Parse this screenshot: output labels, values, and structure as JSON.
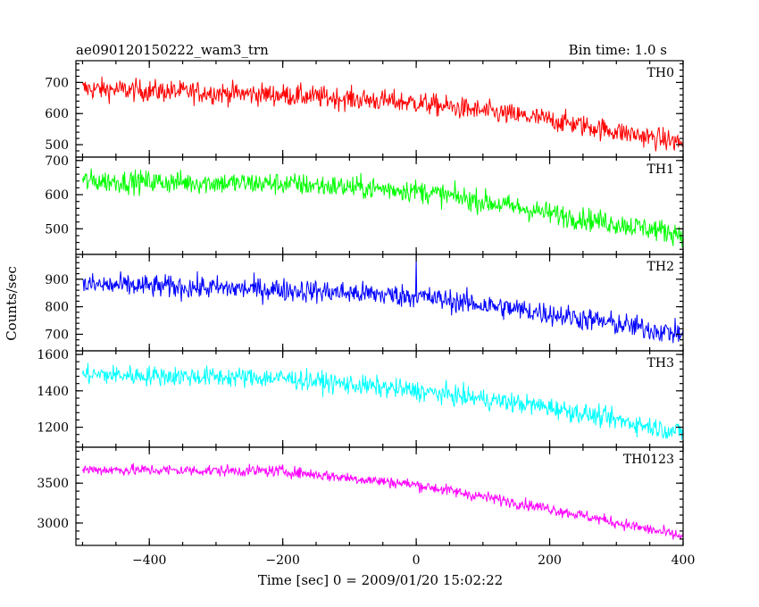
{
  "header": {
    "title": "ae090120150222_wam3_trn",
    "bin_time": "Bin time: 1.0 s"
  },
  "axes": {
    "ylabel": "Counts/sec",
    "xlabel": "Time [sec] 0 = 2009/01/20 15:02:22"
  },
  "chart_data": {
    "type": "line",
    "x_range": [
      -510,
      400
    ],
    "x_ticks": [
      -400,
      -200,
      0,
      200,
      400
    ],
    "x_tick_labels": [
      "−400",
      "−200",
      "0",
      "200",
      "400"
    ],
    "bin_time_s": 1.0,
    "panels": [
      {
        "name": "TH0",
        "color": "#ff0000",
        "ylim": [
          460,
          770
        ],
        "yticks": [
          500,
          600,
          700
        ],
        "trend": [
          [
            -500,
            680
          ],
          [
            -200,
            660
          ],
          [
            0,
            635
          ],
          [
            200,
            580
          ],
          [
            400,
            505
          ]
        ],
        "noise": 32,
        "spikes": []
      },
      {
        "name": "TH1",
        "color": "#00ff00",
        "ylim": [
          425,
          710
        ],
        "yticks": [
          500,
          600,
          700
        ],
        "trend": [
          [
            -500,
            640
          ],
          [
            -200,
            632
          ],
          [
            0,
            612
          ],
          [
            100,
            580
          ],
          [
            200,
            545
          ],
          [
            400,
            485
          ]
        ],
        "noise": 30,
        "spikes": []
      },
      {
        "name": "TH2",
        "color": "#0000ff",
        "ylim": [
          640,
          990
        ],
        "yticks": [
          700,
          800,
          900
        ],
        "trend": [
          [
            -500,
            880
          ],
          [
            -200,
            862
          ],
          [
            0,
            838
          ],
          [
            200,
            775
          ],
          [
            400,
            700
          ]
        ],
        "noise": 38,
        "spikes": [
          [
            0,
            980
          ]
        ]
      },
      {
        "name": "TH3",
        "color": "#00ffff",
        "ylim": [
          1090,
          1620
        ],
        "yticks": [
          1200,
          1400,
          1600
        ],
        "trend": [
          [
            -500,
            1490
          ],
          [
            -200,
            1470
          ],
          [
            0,
            1400
          ],
          [
            200,
            1310
          ],
          [
            400,
            1170
          ]
        ],
        "noise": 50,
        "spikes": []
      },
      {
        "name": "TH0123",
        "color": "#ff00ff",
        "ylim": [
          2720,
          3950
        ],
        "yticks": [
          3000,
          3500
        ],
        "trend": [
          [
            -500,
            3670
          ],
          [
            -200,
            3650
          ],
          [
            0,
            3480
          ],
          [
            200,
            3180
          ],
          [
            400,
            2830
          ]
        ],
        "noise": 65,
        "spikes": []
      }
    ]
  }
}
